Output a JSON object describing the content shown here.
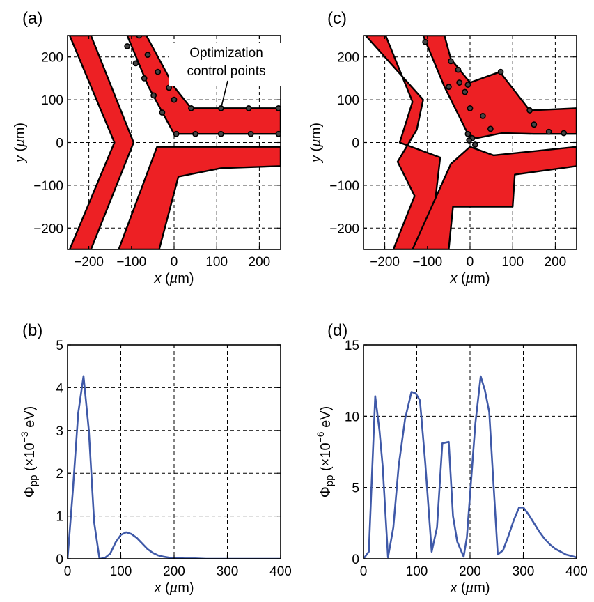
{
  "chart_data": [
    {
      "panel_label": "(a)",
      "type": "diagram",
      "xlabel": "x (µm)",
      "ylabel": "y (µm)",
      "xlim": [
        -250,
        250
      ],
      "ylim": [
        -250,
        250
      ],
      "xticks": [
        -200,
        -100,
        0,
        100,
        200
      ],
      "yticks": [
        -200,
        -100,
        0,
        100,
        200
      ],
      "xtick_labels": [
        "−200",
        "−100",
        "0",
        "100",
        "200"
      ],
      "ytick_labels": [
        "−200",
        "−100",
        "0",
        "100",
        "200"
      ],
      "grid": true,
      "fill_color": "#ed2024",
      "annotation": {
        "lines": [
          "Optimization",
          "control points"
        ],
        "target": [
          110,
          80
        ]
      },
      "shapes": [
        [
          [
            -245,
            250
          ],
          [
            -195,
            250
          ],
          [
            -95,
            0
          ],
          [
            -195,
            -250
          ],
          [
            -245,
            -250
          ],
          [
            -140,
            0
          ]
        ],
        [
          [
            -110,
            250
          ],
          [
            -65,
            250
          ],
          [
            0,
            130
          ],
          [
            40,
            80
          ],
          [
            250,
            80
          ],
          [
            250,
            20
          ],
          [
            0,
            20
          ],
          [
            -60,
            130
          ]
        ],
        [
          [
            -35,
            -250
          ],
          [
            -130,
            -250
          ],
          [
            -40,
            -10
          ],
          [
            0,
            -10
          ],
          [
            250,
            -10
          ],
          [
            250,
            -55
          ],
          [
            110,
            -60
          ],
          [
            10,
            -80
          ]
        ]
      ],
      "control_points": [
        [
          -82,
          250
        ],
        [
          -62,
          205
        ],
        [
          -38,
          165
        ],
        [
          -12,
          128
        ],
        [
          0,
          100
        ],
        [
          40,
          80
        ],
        [
          110,
          80
        ],
        [
          175,
          80
        ],
        [
          245,
          80
        ],
        [
          -110,
          225
        ],
        [
          -90,
          185
        ],
        [
          -70,
          150
        ],
        [
          -48,
          110
        ],
        [
          -28,
          70
        ],
        [
          5,
          20
        ],
        [
          50,
          20
        ],
        [
          110,
          20
        ],
        [
          180,
          20
        ],
        [
          245,
          20
        ]
      ]
    },
    {
      "panel_label": "(b)",
      "type": "line",
      "xlabel": "x (µm)",
      "ylabel": "Φpp (×10⁻³ eV)",
      "xlim": [
        0,
        400
      ],
      "ylim": [
        0,
        5
      ],
      "xticks": [
        0,
        100,
        200,
        300,
        400
      ],
      "yticks": [
        0,
        1,
        2,
        3,
        4,
        5
      ],
      "xtick_labels": [
        "0",
        "100",
        "200",
        "300",
        "400"
      ],
      "ytick_labels": [
        "0",
        "1",
        "2",
        "3",
        "4",
        "5"
      ],
      "grid": true,
      "line_color": "#3f59a8",
      "series": [
        {
          "x": [
            0,
            10,
            20,
            30,
            40,
            50,
            60,
            70,
            80,
            90,
            100,
            110,
            120,
            130,
            140,
            150,
            160,
            170,
            180,
            190,
            200,
            220,
            240,
            260,
            280,
            300,
            320,
            340,
            360,
            380,
            400
          ],
          "values": [
            0,
            1.6,
            3.4,
            4.27,
            3.0,
            0.85,
            0.0,
            0.02,
            0.12,
            0.38,
            0.56,
            0.62,
            0.58,
            0.49,
            0.36,
            0.23,
            0.14,
            0.08,
            0.05,
            0.03,
            0.02,
            0.01,
            0.01,
            0.0,
            0.0,
            0.0,
            0.0,
            0.0,
            0.0,
            0.0,
            0.0
          ]
        }
      ]
    },
    {
      "panel_label": "(c)",
      "type": "diagram",
      "xlabel": "x (µm)",
      "ylabel": "y (µm)",
      "xlim": [
        -250,
        250
      ],
      "ylim": [
        -250,
        250
      ],
      "xticks": [
        -200,
        -100,
        0,
        100,
        200
      ],
      "yticks": [
        -200,
        -100,
        0,
        100,
        200
      ],
      "xtick_labels": [
        "−200",
        "−100",
        "0",
        "100",
        "200"
      ],
      "ytick_labels": [
        "−200",
        "−100",
        "0",
        "100",
        "200"
      ],
      "grid": true,
      "fill_color": "#ed2024",
      "shapes": [
        [
          [
            -245,
            250
          ],
          [
            -198,
            250
          ],
          [
            -135,
            95
          ],
          [
            -165,
            0
          ],
          [
            -70,
            -35
          ],
          [
            -95,
            -250
          ],
          [
            -180,
            -250
          ],
          [
            -130,
            -125
          ],
          [
            -170,
            -45
          ],
          [
            -125,
            30
          ],
          [
            -110,
            100
          ]
        ],
        [
          [
            -110,
            250
          ],
          [
            -60,
            250
          ],
          [
            -45,
            195
          ],
          [
            0,
            140
          ],
          [
            70,
            165
          ],
          [
            140,
            75
          ],
          [
            250,
            80
          ],
          [
            250,
            20
          ],
          [
            150,
            20
          ],
          [
            75,
            22
          ],
          [
            15,
            10
          ],
          [
            -5,
            20
          ],
          [
            -60,
            130
          ]
        ],
        [
          [
            -50,
            -250
          ],
          [
            -135,
            -250
          ],
          [
            -45,
            -50
          ],
          [
            0,
            -10
          ],
          [
            55,
            -30
          ],
          [
            250,
            -10
          ],
          [
            250,
            -55
          ],
          [
            105,
            -75
          ],
          [
            100,
            -150
          ],
          [
            -40,
            -150
          ]
        ]
      ],
      "control_points": [
        [
          -105,
          235
        ],
        [
          -45,
          190
        ],
        [
          -28,
          170
        ],
        [
          -5,
          135
        ],
        [
          72,
          165
        ],
        [
          140,
          75
        ],
        [
          150,
          42
        ],
        [
          185,
          25
        ],
        [
          220,
          22
        ],
        [
          -25,
          140
        ],
        [
          -50,
          130
        ],
        [
          -12,
          118
        ],
        [
          0,
          80
        ],
        [
          30,
          62
        ],
        [
          48,
          32
        ],
        [
          5,
          10
        ],
        [
          -5,
          20
        ],
        [
          -2,
          5
        ],
        [
          12,
          -5
        ]
      ]
    },
    {
      "panel_label": "(d)",
      "type": "line",
      "xlabel": "x (µm)",
      "ylabel": "Φpp (×10⁻⁶ eV)",
      "xlim": [
        0,
        400
      ],
      "ylim": [
        0,
        15
      ],
      "xticks": [
        0,
        100,
        200,
        300,
        400
      ],
      "yticks": [
        0,
        5,
        10,
        15
      ],
      "xtick_labels": [
        "0",
        "100",
        "200",
        "300",
        "400"
      ],
      "ytick_labels": [
        "0",
        "5",
        "10",
        "15"
      ],
      "grid": true,
      "line_color": "#3f59a8",
      "series": [
        {
          "x": [
            0,
            10,
            22,
            30,
            36,
            46,
            56,
            66,
            78,
            90,
            98,
            106,
            116,
            128,
            138,
            148,
            160,
            168,
            176,
            188,
            194,
            200,
            210,
            220,
            228,
            236,
            242,
            252,
            262,
            272,
            282,
            292,
            300,
            310,
            320,
            330,
            340,
            350,
            360,
            370,
            380,
            390,
            400
          ],
          "values": [
            0,
            0.5,
            11.4,
            9.0,
            6.5,
            0.1,
            2.2,
            6.5,
            9.8,
            11.7,
            11.6,
            11.1,
            6.7,
            0.5,
            2.2,
            8.1,
            8.2,
            3.0,
            1.2,
            0.15,
            1.5,
            4.5,
            9.5,
            12.8,
            11.8,
            10.3,
            6.5,
            0.3,
            0.6,
            1.6,
            2.7,
            3.6,
            3.6,
            3.1,
            2.5,
            1.9,
            1.4,
            1.0,
            0.7,
            0.5,
            0.3,
            0.2,
            0.1
          ]
        }
      ]
    }
  ]
}
